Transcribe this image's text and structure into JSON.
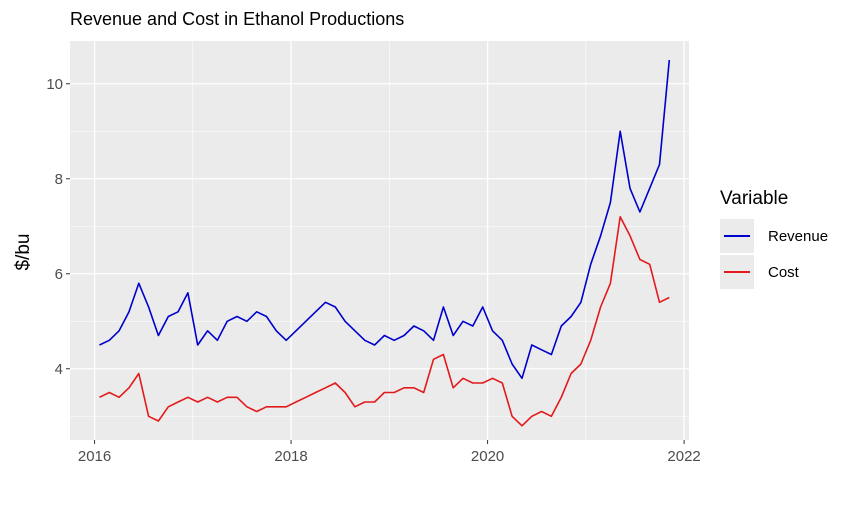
{
  "title": "Revenue and Cost in Ethanol Productions",
  "chart_data": {
    "type": "line",
    "title": "Revenue and Cost in Ethanol Productions",
    "xlabel": "",
    "ylabel": "$/bu",
    "xlim": [
      2015.75,
      2022.05
    ],
    "ylim": [
      2.5,
      10.9
    ],
    "x_ticks": [
      2016,
      2018,
      2020,
      2022
    ],
    "y_ticks": [
      4,
      6,
      8,
      10
    ],
    "grid": true,
    "legend": {
      "title": "Variable",
      "position": "right"
    },
    "x": [
      2016.05,
      2016.15,
      2016.25,
      2016.35,
      2016.45,
      2016.55,
      2016.65,
      2016.75,
      2016.85,
      2016.95,
      2017.05,
      2017.15,
      2017.25,
      2017.35,
      2017.45,
      2017.55,
      2017.65,
      2017.75,
      2017.85,
      2017.95,
      2018.05,
      2018.15,
      2018.25,
      2018.35,
      2018.45,
      2018.55,
      2018.65,
      2018.75,
      2018.85,
      2018.95,
      2019.05,
      2019.15,
      2019.25,
      2019.35,
      2019.45,
      2019.55,
      2019.65,
      2019.75,
      2019.85,
      2019.95,
      2020.05,
      2020.15,
      2020.25,
      2020.35,
      2020.45,
      2020.55,
      2020.65,
      2020.75,
      2020.85,
      2020.95,
      2021.05,
      2021.15,
      2021.25,
      2021.35,
      2021.45,
      2021.55,
      2021.65,
      2021.75,
      2021.85
    ],
    "series": [
      {
        "name": "Revenue",
        "color": "#0000cd",
        "values": [
          4.5,
          4.6,
          4.8,
          5.2,
          5.8,
          5.3,
          4.7,
          5.1,
          5.2,
          5.6,
          4.5,
          4.8,
          4.6,
          5.0,
          5.1,
          5.0,
          5.2,
          5.1,
          4.8,
          4.6,
          4.8,
          5.0,
          5.2,
          5.4,
          5.3,
          5.0,
          4.8,
          4.6,
          4.5,
          4.7,
          4.6,
          4.7,
          4.9,
          4.8,
          4.6,
          5.3,
          4.7,
          5.0,
          4.9,
          5.3,
          4.8,
          4.6,
          4.1,
          3.8,
          4.5,
          4.4,
          4.3,
          4.9,
          5.1,
          5.4,
          6.2,
          6.8,
          7.5,
          9.0,
          7.8,
          7.3,
          7.8,
          8.3,
          10.5
        ]
      },
      {
        "name": "Cost",
        "color": "#e31a1c",
        "values": [
          3.4,
          3.5,
          3.4,
          3.6,
          3.9,
          3.0,
          2.9,
          3.2,
          3.3,
          3.4,
          3.3,
          3.4,
          3.3,
          3.4,
          3.4,
          3.2,
          3.1,
          3.2,
          3.2,
          3.2,
          3.3,
          3.4,
          3.5,
          3.6,
          3.7,
          3.5,
          3.2,
          3.3,
          3.3,
          3.5,
          3.5,
          3.6,
          3.6,
          3.5,
          4.2,
          4.3,
          3.6,
          3.8,
          3.7,
          3.7,
          3.8,
          3.7,
          3.0,
          2.8,
          3.0,
          3.1,
          3.0,
          3.4,
          3.9,
          4.1,
          4.6,
          5.3,
          5.8,
          7.2,
          6.8,
          6.3,
          6.2,
          5.4,
          5.5
        ]
      }
    ]
  }
}
